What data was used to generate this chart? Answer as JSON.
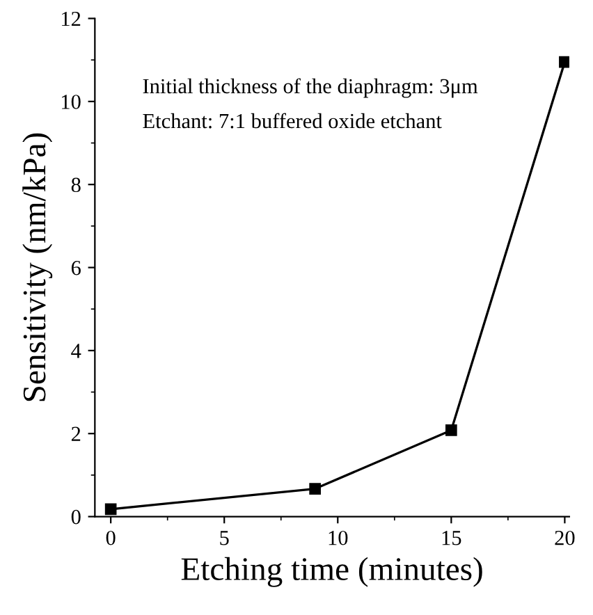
{
  "chart_data": {
    "type": "line",
    "xlabel": "Etching time (minutes)",
    "ylabel": "Sensitivity (nm/kPa)",
    "annotations": [
      "Initial thickness of the diaphragm: 3μm",
      "Etchant: 7:1 buffered oxide etchant"
    ],
    "x": [
      0,
      9,
      15,
      20
    ],
    "series": [
      {
        "color": "#000000",
        "values": [
          0.18,
          0.67,
          2.08,
          10.95
        ]
      }
    ],
    "xlim": [
      -0.7,
      20.2
    ],
    "ylim": [
      0,
      12
    ],
    "xticks": [
      0,
      5,
      10,
      15,
      20
    ],
    "yticks": [
      0,
      2,
      4,
      6,
      8,
      10,
      12
    ],
    "marker": "square",
    "line_style": "solid",
    "grid": false,
    "legend": false
  }
}
